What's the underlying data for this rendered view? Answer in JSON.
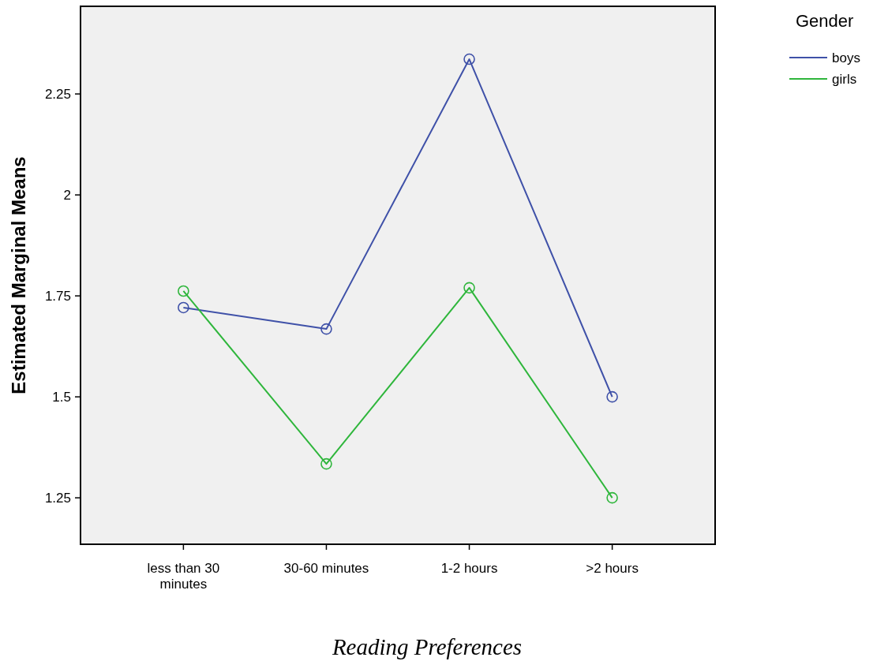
{
  "chart_data": {
    "type": "line",
    "xlabel": "Reading Preferences",
    "ylabel": "Estimated Marginal Means",
    "legend_title": "Gender",
    "categories": [
      "less than 30 minutes",
      "30-60 minutes",
      "1-2 hours",
      ">2 hours"
    ],
    "series": [
      {
        "name": "boys",
        "color": "#3f51a8",
        "values": [
          1.721,
          1.668,
          2.336,
          1.5
        ]
      },
      {
        "name": "girls",
        "color": "#2fb63c",
        "values": [
          1.762,
          1.334,
          1.77,
          1.25
        ]
      }
    ],
    "ylim": [
      1.135,
      2.467
    ],
    "yticks": [
      1.25,
      1.5,
      1.75,
      2,
      2.25
    ],
    "grid": false,
    "legend": "top right",
    "marker": "circle",
    "line_style": "solid"
  }
}
